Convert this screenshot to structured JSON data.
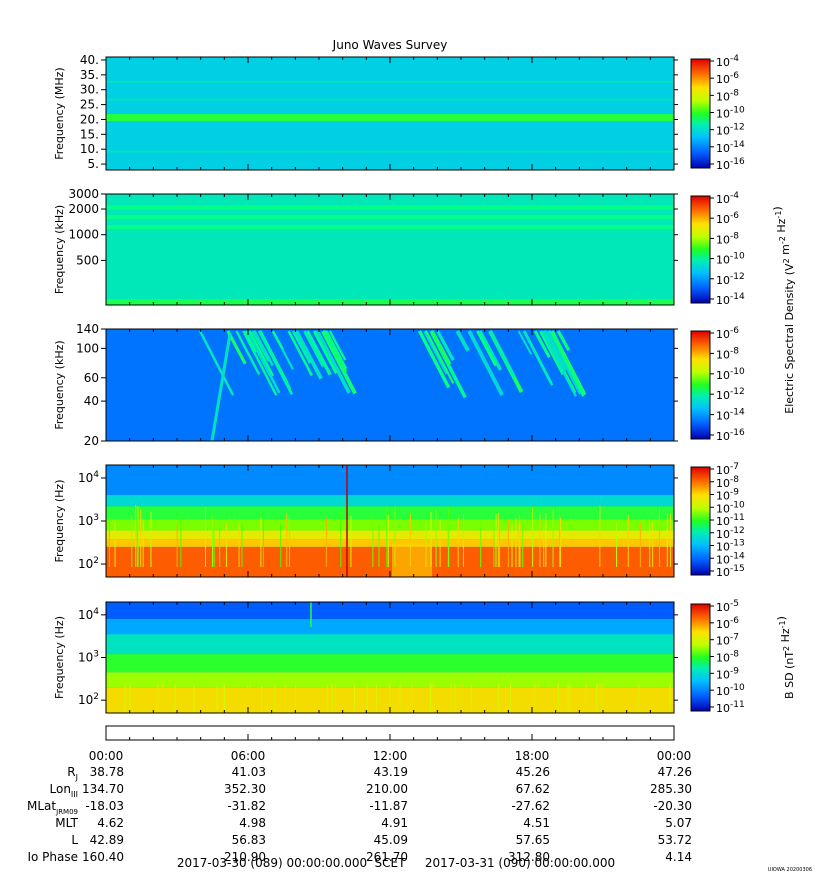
{
  "title": "Juno Waves Survey",
  "credit": "UIOWA 20200306",
  "colors": {
    "scale": [
      "#0000b0",
      "#0060ff",
      "#00c0ff",
      "#00ff90",
      "#40ff00",
      "#d0ff00",
      "#ffd000",
      "#ff6000",
      "#e00000"
    ]
  },
  "chart_data": [
    {
      "type": "heatmap",
      "name": "HFR high band",
      "ylabel": "Frequency (MHz)",
      "yscale": "linear",
      "ylim": [
        3,
        41
      ],
      "yticks": [
        5,
        10,
        15,
        20,
        25,
        30,
        35,
        40
      ],
      "ytick_labels": [
        "5.",
        "10.",
        "15.",
        "20.",
        "25.",
        "30.",
        "35.",
        "40."
      ],
      "colorbar_ticks": [
        "10-4",
        "10-6",
        "10-8",
        "10-10",
        "10-12",
        "10-14",
        "10-16"
      ],
      "colorbar_label": "",
      "background_level": 0.28
    },
    {
      "type": "heatmap",
      "name": "HFR low band",
      "ylabel": "Frequency (kHz)",
      "yscale": "log",
      "ylim": [
        150,
        3000
      ],
      "yticks": [
        500,
        1000,
        2000,
        3000
      ],
      "ytick_labels": [
        "500",
        "1000",
        "2000",
        "3000"
      ],
      "colorbar_ticks": [
        "10-4",
        "10-6",
        "10-8",
        "10-10",
        "10-12",
        "10-14"
      ],
      "colorbar_label": "Electric Spectral Density (V2 m-2 Hz-1)",
      "background_level": 0.33
    },
    {
      "type": "heatmap",
      "name": "LFR high",
      "ylabel": "Frequency (kHz)",
      "yscale": "log",
      "ylim": [
        20,
        140
      ],
      "yticks": [
        20,
        40,
        60,
        100,
        140
      ],
      "ytick_labels": [
        "20",
        "40",
        "60",
        "100",
        "140"
      ],
      "colorbar_ticks": [
        "10-6",
        "10-8",
        "10-10",
        "10-12",
        "10-14",
        "10-16"
      ],
      "colorbar_label": "",
      "background_level": 0.15
    },
    {
      "type": "heatmap",
      "name": "LFR low electric",
      "ylabel": "Frequency (Hz)",
      "yscale": "log",
      "ylim": [
        50,
        20000
      ],
      "yticks": [
        100,
        1000,
        10000
      ],
      "ytick_labels": [
        "10^2",
        "10^3",
        "10^4"
      ],
      "colorbar_ticks": [
        "10-7",
        "10-8",
        "10-9",
        "10-10",
        "10-11",
        "10-12",
        "10-13",
        "10-14",
        "10-15"
      ],
      "colorbar_label": "",
      "background_level": 0.2
    },
    {
      "type": "heatmap",
      "name": "LFR low magnetic",
      "ylabel": "Frequency (Hz)",
      "yscale": "log",
      "ylim": [
        50,
        20000
      ],
      "yticks": [
        100,
        1000,
        10000
      ],
      "ytick_labels": [
        "10^2",
        "10^3",
        "10^4"
      ],
      "colorbar_ticks": [
        "10-5",
        "10-6",
        "10-7",
        "10-8",
        "10-9",
        "10-10",
        "10-11"
      ],
      "colorbar_label": "B SD (nT2 Hz-1)",
      "background_level": 0.2
    }
  ],
  "time_axis": {
    "tick_labels": [
      "00:00",
      "06:00",
      "12:00",
      "18:00",
      "00:00"
    ],
    "ephemeris": [
      {
        "label": "Rj",
        "values": [
          "38.78",
          "41.03",
          "43.19",
          "45.26",
          "47.26"
        ]
      },
      {
        "label": "LonIII",
        "values": [
          "134.70",
          "352.30",
          "210.00",
          "67.62",
          "285.30"
        ]
      },
      {
        "label": "MLatJRM09",
        "values": [
          "-18.03",
          "-31.82",
          "-11.87",
          "-27.62",
          "-20.30"
        ]
      },
      {
        "label": "MLT",
        "values": [
          "4.62",
          "4.98",
          "4.91",
          "4.51",
          "5.07"
        ]
      },
      {
        "label": "L",
        "values": [
          "42.89",
          "56.83",
          "45.09",
          "57.65",
          "53.72"
        ]
      },
      {
        "label": "Io Phase",
        "values": [
          "160.40",
          "210.90",
          "261.70",
          "312.80",
          "4.14"
        ]
      }
    ],
    "start": "2017-03-30 (089) 00:00:00.000",
    "scet": "SCET",
    "end": "2017-03-31 (090) 00:00:00.000"
  }
}
